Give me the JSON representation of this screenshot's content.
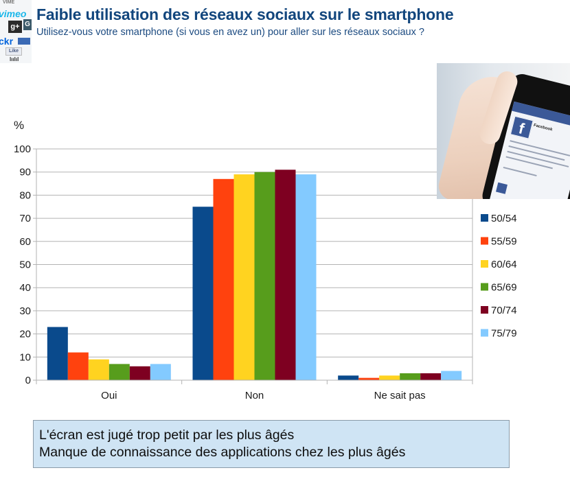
{
  "header": {
    "title": "Faible utilisation des réseaux sociaux sur le smartphone",
    "subtitle": "Utilisez-vous votre smartphone (si vous en avez un) pour aller sur les réseaux sociaux  ?"
  },
  "logo_collage": {
    "icons": [
      "vimeo-logo",
      "google-plus-logo",
      "flickr-logo",
      "facebook-like-button"
    ],
    "labels": {
      "vimeo": "vimeo",
      "gplus": "g+",
      "g": "G",
      "flickr": "ckr",
      "like": "Like",
      "top": "VIME",
      "bottom": "lıılıl"
    }
  },
  "photo": {
    "subject": "hand-holding-smartphone-facebook",
    "app_name": "Facebook",
    "logo_letter": "f"
  },
  "chart_data": {
    "type": "bar",
    "title": "Faible utilisation des réseaux sociaux sur le smartphone",
    "subtitle": "Utilisez-vous votre smartphone (si vous en avez un) pour aller sur les réseaux sociaux  ?",
    "xlabel": "",
    "ylabel": "%",
    "ylim": [
      0,
      100
    ],
    "yticks": [
      0,
      10,
      20,
      30,
      40,
      50,
      60,
      70,
      80,
      90,
      100
    ],
    "grid": true,
    "legend_position": "right",
    "categories": [
      "Oui",
      "Non",
      "Ne sait pas"
    ],
    "series": [
      {
        "name": "50/54",
        "color": "#0a4a8c",
        "values": [
          23,
          75,
          2
        ]
      },
      {
        "name": "55/59",
        "color": "#ff420e",
        "values": [
          12,
          87,
          1
        ]
      },
      {
        "name": "60/64",
        "color": "#ffd320",
        "values": [
          9,
          89,
          2
        ]
      },
      {
        "name": "65/69",
        "color": "#579d1c",
        "values": [
          7,
          90,
          3
        ]
      },
      {
        "name": "70/74",
        "color": "#7e0021",
        "values": [
          6,
          91,
          3
        ]
      },
      {
        "name": "75/79",
        "color": "#83caff",
        "values": [
          7,
          89,
          4
        ]
      }
    ]
  },
  "notes": {
    "lines": [
      "L'écran est jugé trop petit par les plus âgés",
      "Manque de connaissance des applications chez les plus âgés"
    ]
  }
}
